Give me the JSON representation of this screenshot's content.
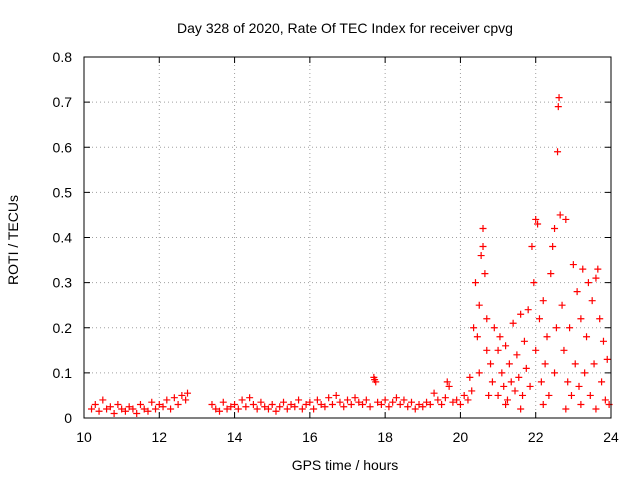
{
  "chart_data": {
    "type": "scatter",
    "title": "Day 328 of 2020, Rate Of TEC Index for receiver cpvg",
    "xlabel": "GPS time / hours",
    "ylabel": "ROTI / TECUs",
    "xlim": [
      10,
      24
    ],
    "ylim": [
      0,
      0.8
    ],
    "x_ticks": [
      10,
      12,
      14,
      16,
      18,
      20,
      22,
      24
    ],
    "y_ticks": [
      0,
      0.1,
      0.2,
      0.3,
      0.4,
      0.5,
      0.6,
      0.7,
      0.8
    ],
    "x_tick_labels": [
      "10",
      "12",
      "14",
      "16",
      "18",
      "20",
      "22",
      "24"
    ],
    "y_tick_labels": [
      "0",
      "0.1",
      "0.2",
      "0.3",
      "0.4",
      "0.5",
      "0.6",
      "0.7",
      "0.8"
    ],
    "grid": true,
    "marker": "plus",
    "color": "#ff0000",
    "series": [
      {
        "points": [
          [
            10.2,
            0.02
          ],
          [
            10.3,
            0.03
          ],
          [
            10.4,
            0.015
          ],
          [
            10.5,
            0.04
          ],
          [
            10.6,
            0.02
          ],
          [
            10.7,
            0.025
          ],
          [
            10.8,
            0.01
          ],
          [
            10.9,
            0.03
          ],
          [
            11.0,
            0.02
          ],
          [
            11.1,
            0.015
          ],
          [
            11.2,
            0.025
          ],
          [
            11.3,
            0.02
          ],
          [
            11.4,
            0.01
          ],
          [
            11.5,
            0.03
          ],
          [
            11.6,
            0.02
          ],
          [
            11.7,
            0.015
          ],
          [
            11.8,
            0.035
          ],
          [
            11.9,
            0.02
          ],
          [
            12.0,
            0.03
          ],
          [
            12.1,
            0.025
          ],
          [
            12.2,
            0.04
          ],
          [
            12.3,
            0.02
          ],
          [
            12.4,
            0.045
          ],
          [
            12.5,
            0.03
          ],
          [
            12.6,
            0.05
          ],
          [
            12.7,
            0.04
          ],
          [
            12.75,
            0.055
          ],
          [
            13.4,
            0.03
          ],
          [
            13.5,
            0.02
          ],
          [
            13.6,
            0.015
          ],
          [
            13.7,
            0.035
          ],
          [
            13.8,
            0.02
          ],
          [
            13.9,
            0.025
          ],
          [
            14.0,
            0.03
          ],
          [
            14.1,
            0.02
          ],
          [
            14.2,
            0.04
          ],
          [
            14.3,
            0.025
          ],
          [
            14.4,
            0.045
          ],
          [
            14.5,
            0.03
          ],
          [
            14.6,
            0.02
          ],
          [
            14.7,
            0.035
          ],
          [
            14.8,
            0.025
          ],
          [
            14.9,
            0.02
          ],
          [
            15.0,
            0.03
          ],
          [
            15.1,
            0.015
          ],
          [
            15.2,
            0.025
          ],
          [
            15.3,
            0.035
          ],
          [
            15.4,
            0.02
          ],
          [
            15.5,
            0.03
          ],
          [
            15.6,
            0.025
          ],
          [
            15.7,
            0.04
          ],
          [
            15.8,
            0.02
          ],
          [
            15.9,
            0.03
          ],
          [
            16.0,
            0.035
          ],
          [
            16.1,
            0.02
          ],
          [
            16.2,
            0.04
          ],
          [
            16.3,
            0.03
          ],
          [
            16.4,
            0.025
          ],
          [
            16.5,
            0.045
          ],
          [
            16.6,
            0.03
          ],
          [
            16.7,
            0.05
          ],
          [
            16.8,
            0.035
          ],
          [
            16.9,
            0.025
          ],
          [
            17.0,
            0.04
          ],
          [
            17.1,
            0.03
          ],
          [
            17.2,
            0.045
          ],
          [
            17.3,
            0.035
          ],
          [
            17.4,
            0.03
          ],
          [
            17.5,
            0.04
          ],
          [
            17.6,
            0.025
          ],
          [
            17.7,
            0.09
          ],
          [
            17.72,
            0.085
          ],
          [
            17.75,
            0.08
          ],
          [
            17.8,
            0.035
          ],
          [
            17.9,
            0.03
          ],
          [
            18.0,
            0.04
          ],
          [
            18.1,
            0.025
          ],
          [
            18.2,
            0.035
          ],
          [
            18.3,
            0.045
          ],
          [
            18.4,
            0.03
          ],
          [
            18.5,
            0.04
          ],
          [
            18.6,
            0.025
          ],
          [
            18.7,
            0.035
          ],
          [
            18.8,
            0.02
          ],
          [
            18.9,
            0.03
          ],
          [
            19.0,
            0.025
          ],
          [
            19.1,
            0.035
          ],
          [
            19.2,
            0.03
          ],
          [
            19.3,
            0.055
          ],
          [
            19.4,
            0.04
          ],
          [
            19.5,
            0.03
          ],
          [
            19.6,
            0.045
          ],
          [
            19.65,
            0.08
          ],
          [
            19.7,
            0.07
          ],
          [
            19.8,
            0.035
          ],
          [
            19.9,
            0.04
          ],
          [
            20.0,
            0.03
          ],
          [
            20.1,
            0.05
          ],
          [
            20.2,
            0.04
          ],
          [
            20.25,
            0.09
          ],
          [
            20.3,
            0.06
          ],
          [
            20.35,
            0.2
          ],
          [
            20.4,
            0.3
          ],
          [
            20.45,
            0.18
          ],
          [
            20.5,
            0.25
          ],
          [
            20.5,
            0.1
          ],
          [
            20.55,
            0.36
          ],
          [
            20.6,
            0.38
          ],
          [
            20.6,
            0.42
          ],
          [
            20.65,
            0.32
          ],
          [
            20.7,
            0.15
          ],
          [
            20.7,
            0.22
          ],
          [
            20.75,
            0.05
          ],
          [
            20.8,
            0.12
          ],
          [
            20.85,
            0.08
          ],
          [
            20.9,
            0.2
          ],
          [
            21.0,
            0.15
          ],
          [
            21.0,
            0.05
          ],
          [
            21.05,
            0.18
          ],
          [
            21.1,
            0.1
          ],
          [
            21.15,
            0.07
          ],
          [
            21.2,
            0.16
          ],
          [
            21.25,
            0.04
          ],
          [
            21.3,
            0.12
          ],
          [
            21.35,
            0.08
          ],
          [
            21.4,
            0.21
          ],
          [
            21.45,
            0.06
          ],
          [
            21.5,
            0.14
          ],
          [
            21.55,
            0.09
          ],
          [
            21.6,
            0.23
          ],
          [
            21.65,
            0.05
          ],
          [
            21.7,
            0.17
          ],
          [
            21.75,
            0.11
          ],
          [
            21.8,
            0.24
          ],
          [
            21.85,
            0.07
          ],
          [
            21.9,
            0.38
          ],
          [
            21.95,
            0.3
          ],
          [
            22.0,
            0.44
          ],
          [
            22.0,
            0.15
          ],
          [
            22.05,
            0.43
          ],
          [
            22.1,
            0.22
          ],
          [
            22.15,
            0.08
          ],
          [
            22.2,
            0.26
          ],
          [
            22.25,
            0.12
          ],
          [
            22.3,
            0.18
          ],
          [
            22.35,
            0.05
          ],
          [
            22.4,
            0.32
          ],
          [
            22.45,
            0.38
          ],
          [
            22.5,
            0.42
          ],
          [
            22.5,
            0.1
          ],
          [
            22.55,
            0.2
          ],
          [
            22.58,
            0.59
          ],
          [
            22.6,
            0.69
          ],
          [
            22.62,
            0.71
          ],
          [
            22.65,
            0.45
          ],
          [
            22.7,
            0.25
          ],
          [
            22.75,
            0.15
          ],
          [
            22.8,
            0.44
          ],
          [
            22.85,
            0.08
          ],
          [
            22.9,
            0.2
          ],
          [
            22.95,
            0.05
          ],
          [
            23.0,
            0.34
          ],
          [
            23.05,
            0.12
          ],
          [
            23.1,
            0.28
          ],
          [
            23.15,
            0.07
          ],
          [
            23.2,
            0.22
          ],
          [
            23.25,
            0.33
          ],
          [
            23.3,
            0.1
          ],
          [
            23.35,
            0.18
          ],
          [
            23.4,
            0.3
          ],
          [
            23.45,
            0.05
          ],
          [
            23.5,
            0.26
          ],
          [
            23.55,
            0.12
          ],
          [
            23.6,
            0.31
          ],
          [
            23.65,
            0.33
          ],
          [
            23.7,
            0.22
          ],
          [
            23.75,
            0.08
          ],
          [
            23.8,
            0.17
          ],
          [
            23.85,
            0.04
          ],
          [
            23.9,
            0.13
          ],
          [
            23.95,
            0.03
          ],
          [
            21.2,
            0.03
          ],
          [
            21.6,
            0.02
          ],
          [
            22.2,
            0.03
          ],
          [
            22.8,
            0.02
          ],
          [
            23.2,
            0.03
          ],
          [
            23.6,
            0.02
          ]
        ]
      }
    ]
  }
}
